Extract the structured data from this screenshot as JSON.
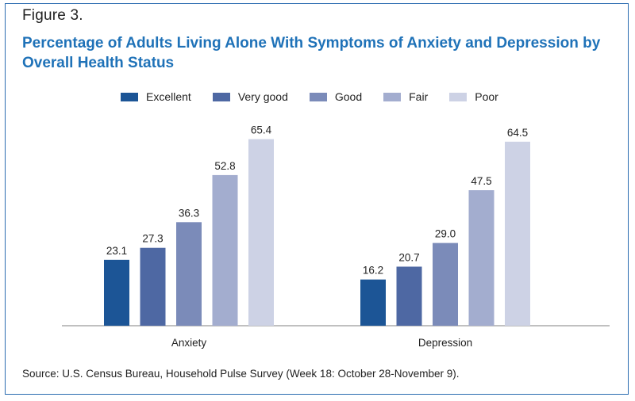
{
  "figure_label": "Figure 3.",
  "chart_data": {
    "type": "bar",
    "title": "Percentage of Adults Living Alone With Symptoms of Anxiety and Depression by Overall Health Status",
    "categories": [
      "Anxiety",
      "Depression"
    ],
    "series": [
      {
        "name": "Excellent",
        "color": "#1c5596",
        "values": [
          23.1,
          16.2
        ]
      },
      {
        "name": "Very good",
        "color": "#4e68a3",
        "values": [
          27.3,
          20.7
        ]
      },
      {
        "name": "Good",
        "color": "#7b8bb9",
        "values": [
          36.3,
          29.0
        ]
      },
      {
        "name": "Fair",
        "color": "#a3adcf",
        "values": [
          52.8,
          47.5
        ]
      },
      {
        "name": "Poor",
        "color": "#cdd2e5",
        "values": [
          65.4,
          64.5
        ]
      }
    ],
    "value_labels": [
      [
        "23.1",
        "16.2"
      ],
      [
        "27.3",
        "20.7"
      ],
      [
        "36.3",
        "29.0"
      ],
      [
        "52.8",
        "47.5"
      ],
      [
        "65.4",
        "64.5"
      ]
    ],
    "ylim": [
      0,
      70
    ],
    "grid": false,
    "legend_position": "top-center",
    "xlabel": "",
    "ylabel": ""
  },
  "source_note": "Source: U.S. Census Bureau, Household Pulse Survey (Week 18: October 28-November 9)."
}
